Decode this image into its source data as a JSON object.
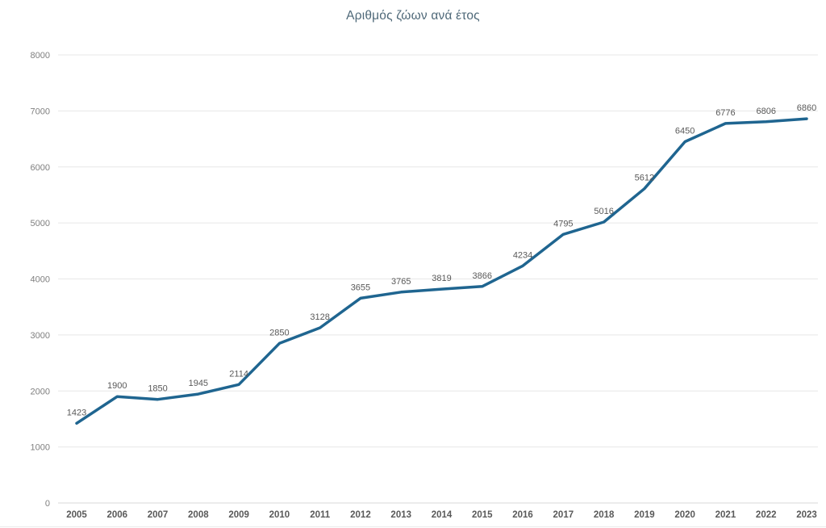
{
  "chart_data": {
    "type": "line",
    "title": "Αριθμός ζώων ανά έτος",
    "categories": [
      "2005",
      "2006",
      "2007",
      "2008",
      "2009",
      "2010",
      "2011",
      "2012",
      "2013",
      "2014",
      "2015",
      "2016",
      "2017",
      "2018",
      "2019",
      "2020",
      "2021",
      "2022",
      "2023"
    ],
    "values": [
      1423,
      1900,
      1850,
      1945,
      2114,
      2850,
      3128,
      3655,
      3765,
      3819,
      3866,
      4234,
      4795,
      5016,
      5612,
      6450,
      6776,
      6806,
      6860
    ],
    "ytick_labels": [
      "0",
      "1000",
      "2000",
      "3000",
      "4000",
      "5000",
      "6000",
      "7000",
      "8000"
    ],
    "ylim": [
      0,
      8000
    ],
    "ytick_step": 1000,
    "grid": true,
    "legend": false,
    "data_labels": true,
    "colors": {
      "line": "#1F6590",
      "title": "#4E6878",
      "data_label": "#595959",
      "x_tick_label": "#595959",
      "y_tick_label": "#7F7F7F",
      "gridline": "#E7E7E7",
      "zero_line": "#D8D8D8"
    }
  }
}
